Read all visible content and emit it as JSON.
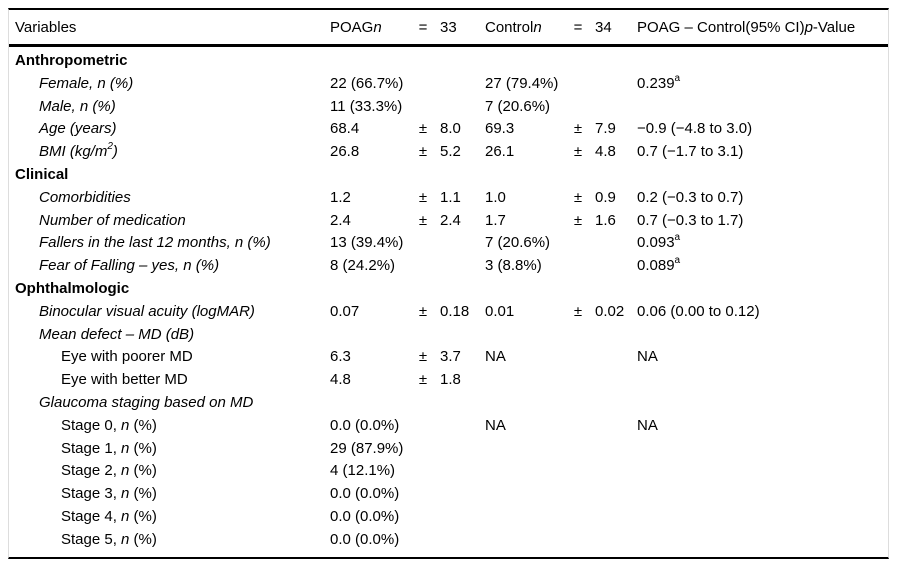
{
  "table": {
    "pm_symbol": "±",
    "na_note": "NA",
    "header": {
      "variables": "Variables",
      "groups": [
        {
          "name": "POAG",
          "n_label": "n",
          "eq": "=",
          "count": "33"
        },
        {
          "name": "Control",
          "n_label": "n",
          "eq": "=",
          "count": "34"
        }
      ],
      "diff": {
        "pre": "POAG – Control",
        "ci": "(95% CI)",
        "p": "p",
        "post": "-Value"
      }
    },
    "rows": [
      {
        "indent": 0,
        "parts": [
          {
            "t": "Anthropometric",
            "s": "b"
          }
        ],
        "poag": null,
        "control": null,
        "diff": null
      },
      {
        "indent": 1,
        "parts": [
          {
            "t": "Female, n (%)",
            "s": "i"
          }
        ],
        "poag": {
          "text": "22 (66.7%)"
        },
        "control": {
          "text": "27 (79.4%)"
        },
        "diff": {
          "text": "0.239",
          "sup": "a"
        }
      },
      {
        "indent": 1,
        "parts": [
          {
            "t": "Male, n (%)",
            "s": "i"
          }
        ],
        "poag": {
          "text": "11 (33.3%)"
        },
        "control": {
          "text": "7 (20.6%)"
        },
        "diff": null
      },
      {
        "indent": 1,
        "parts": [
          {
            "t": "Age (years)",
            "s": "i"
          }
        ],
        "poag": {
          "mean": "68.4",
          "sd": "8.0"
        },
        "control": {
          "mean": "69.3",
          "sd": "7.9"
        },
        "diff": {
          "text": "−0.9 (−4.8 to 3.0)"
        }
      },
      {
        "indent": 1,
        "parts": [
          {
            "t": "BMI (kg/m",
            "s": "i"
          },
          {
            "t": "2",
            "s": "isup"
          },
          {
            "t": ")",
            "s": "i"
          }
        ],
        "poag": {
          "mean": "26.8",
          "sd": "5.2"
        },
        "control": {
          "mean": "26.1",
          "sd": "4.8"
        },
        "diff": {
          "text": "0.7 (−1.7 to 3.1)"
        }
      },
      {
        "indent": 0,
        "parts": [
          {
            "t": "Clinical",
            "s": "b"
          }
        ],
        "poag": null,
        "control": null,
        "diff": null
      },
      {
        "indent": 1,
        "parts": [
          {
            "t": "Comorbidities",
            "s": "i"
          }
        ],
        "poag": {
          "mean": "1.2",
          "sd": "1.1"
        },
        "control": {
          "mean": "1.0",
          "sd": "0.9"
        },
        "diff": {
          "text": "0.2 (−0.3 to 0.7)"
        }
      },
      {
        "indent": 1,
        "parts": [
          {
            "t": "Number of medication",
            "s": "i"
          }
        ],
        "poag": {
          "mean": "2.4",
          "sd": "2.4"
        },
        "control": {
          "mean": "1.7",
          "sd": "1.6"
        },
        "diff": {
          "text": "0.7 (−0.3 to 1.7)"
        }
      },
      {
        "indent": 1,
        "parts": [
          {
            "t": "Fallers in the last 12 months, n (%)",
            "s": "i"
          }
        ],
        "poag": {
          "text": "13 (39.4%)"
        },
        "control": {
          "text": "7 (20.6%)"
        },
        "diff": {
          "text": "0.093",
          "sup": "a"
        }
      },
      {
        "indent": 1,
        "parts": [
          {
            "t": "Fear of Falling – yes, n (%)",
            "s": "i"
          }
        ],
        "poag": {
          "text": "8 (24.2%)"
        },
        "control": {
          "text": "3 (8.8%)"
        },
        "diff": {
          "text": "0.089",
          "sup": "a"
        }
      },
      {
        "indent": 0,
        "parts": [
          {
            "t": "Ophthalmologic",
            "s": "b"
          }
        ],
        "poag": null,
        "control": null,
        "diff": null
      },
      {
        "indent": 1,
        "parts": [
          {
            "t": "Binocular visual acuity (logMAR)",
            "s": "i"
          }
        ],
        "poag": {
          "mean": "0.07",
          "sd": "0.18"
        },
        "control": {
          "mean": "0.01",
          "sd": "0.02"
        },
        "diff": {
          "text": "0.06 (0.00 to 0.12)"
        }
      },
      {
        "indent": 1,
        "parts": [
          {
            "t": "Mean defect – MD (dB)",
            "s": "i"
          }
        ],
        "poag": null,
        "control": null,
        "diff": null
      },
      {
        "indent": 2,
        "parts": [
          {
            "t": "Eye with poorer MD",
            "s": "r"
          }
        ],
        "poag": {
          "mean": "6.3",
          "sd": "3.7"
        },
        "control": {
          "text": "NA"
        },
        "diff": {
          "text": "NA"
        }
      },
      {
        "indent": 2,
        "parts": [
          {
            "t": "Eye with better MD",
            "s": "r"
          }
        ],
        "poag": {
          "mean": "4.8",
          "sd": "1.8"
        },
        "control": null,
        "diff": null
      },
      {
        "indent": 1,
        "parts": [
          {
            "t": "Glaucoma staging based on MD",
            "s": "i"
          }
        ],
        "poag": null,
        "control": null,
        "diff": null
      },
      {
        "indent": 2,
        "parts": [
          {
            "t": "Stage 0, ",
            "s": "r"
          },
          {
            "t": "n",
            "s": "i"
          },
          {
            "t": " (%)",
            "s": "r"
          }
        ],
        "poag": {
          "text": "0.0 (0.0%)"
        },
        "control": {
          "text": "NA"
        },
        "diff": {
          "text": "NA"
        }
      },
      {
        "indent": 2,
        "parts": [
          {
            "t": "Stage 1, ",
            "s": "r"
          },
          {
            "t": "n",
            "s": "i"
          },
          {
            "t": " (%)",
            "s": "r"
          }
        ],
        "poag": {
          "text": "29 (87.9%)"
        },
        "control": null,
        "diff": null
      },
      {
        "indent": 2,
        "parts": [
          {
            "t": "Stage 2, ",
            "s": "r"
          },
          {
            "t": "n",
            "s": "i"
          },
          {
            "t": " (%)",
            "s": "r"
          }
        ],
        "poag": {
          "text": "4 (12.1%)"
        },
        "control": null,
        "diff": null
      },
      {
        "indent": 2,
        "parts": [
          {
            "t": "Stage 3, ",
            "s": "r"
          },
          {
            "t": "n",
            "s": "i"
          },
          {
            "t": " (%)",
            "s": "r"
          }
        ],
        "poag": {
          "text": "0.0 (0.0%)"
        },
        "control": null,
        "diff": null
      },
      {
        "indent": 2,
        "parts": [
          {
            "t": "Stage 4, ",
            "s": "r"
          },
          {
            "t": "n",
            "s": "i"
          },
          {
            "t": " (%)",
            "s": "r"
          }
        ],
        "poag": {
          "text": "0.0 (0.0%)"
        },
        "control": null,
        "diff": null
      },
      {
        "indent": 2,
        "parts": [
          {
            "t": "Stage 5, ",
            "s": "r"
          },
          {
            "t": "n",
            "s": "i"
          },
          {
            "t": " (%)",
            "s": "r"
          }
        ],
        "poag": {
          "text": "0.0 (0.0%)"
        },
        "control": null,
        "diff": null
      }
    ]
  }
}
